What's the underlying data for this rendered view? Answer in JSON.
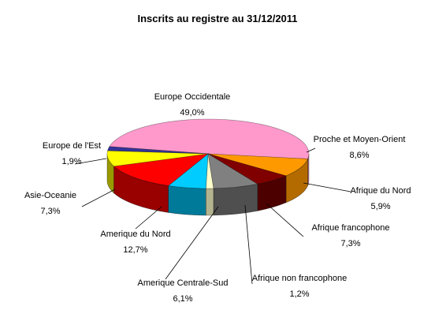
{
  "chart_data": {
    "type": "pie",
    "title": "Inscrits au registre au 31/12/2011",
    "legend": "none",
    "slices": [
      {
        "name": "Europe Occidentale",
        "value": 49.0,
        "label": "49,0%",
        "color": "#ff99cc",
        "side": "#b06c8e"
      },
      {
        "name": "Proche et Moyen-Orient",
        "value": 8.6,
        "label": "8,6%",
        "color": "#ff9900",
        "side": "#b36b00"
      },
      {
        "name": "Afrique du Nord",
        "value": 5.9,
        "label": "5,9%",
        "color": "#800000",
        "side": "#4d0000"
      },
      {
        "name": "Afrique francophone",
        "value": 7.3,
        "label": "7,3%",
        "color": "#808080",
        "side": "#4f4f4f"
      },
      {
        "name": "Afrique non francophone",
        "value": 1.2,
        "label": "1,2%",
        "color": "#ffffcc",
        "side": "#b3b38f"
      },
      {
        "name": "Amerique Centrale-Sud",
        "value": 6.1,
        "label": "6,1%",
        "color": "#00ccff",
        "side": "#007a99"
      },
      {
        "name": "Amerique du Nord",
        "value": 12.7,
        "label": "12,7%",
        "color": "#ff0000",
        "side": "#990000"
      },
      {
        "name": "Asie-Oceanie",
        "value": 7.3,
        "label": "7,3%",
        "color": "#ffff00",
        "side": "#999900"
      },
      {
        "name": "Europe de l'Est",
        "value": 1.9,
        "label": "1,9%",
        "color": "#333399",
        "side": "#1f1f5c"
      }
    ]
  }
}
